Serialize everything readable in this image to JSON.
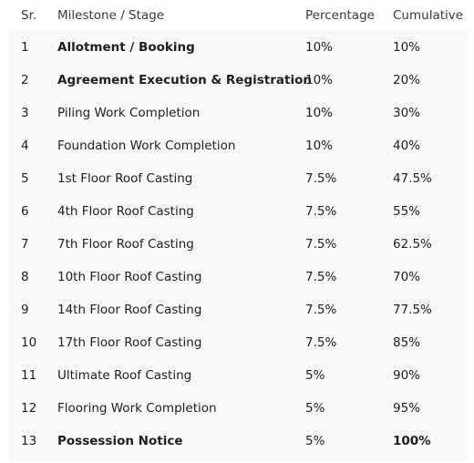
{
  "table": {
    "headers": {
      "sr": "Sr.",
      "milestone": "Milestone / Stage",
      "percentage": "Percentage",
      "cumulative": "Cumulative"
    },
    "rows": [
      {
        "sr": "1",
        "milestone": "Allotment / Booking",
        "percentage": "10%",
        "cumulative": "10%"
      },
      {
        "sr": "2",
        "milestone": "Agreement Execution & Registration",
        "percentage": "10%",
        "cumulative": "20%"
      },
      {
        "sr": "3",
        "milestone": "Piling Work Completion",
        "percentage": "10%",
        "cumulative": "30%"
      },
      {
        "sr": "4",
        "milestone": "Foundation Work Completion",
        "percentage": "10%",
        "cumulative": "40%"
      },
      {
        "sr": "5",
        "milestone": "1st Floor Roof Casting",
        "percentage": "7.5%",
        "cumulative": "47.5%"
      },
      {
        "sr": "6",
        "milestone": "4th Floor Roof Casting",
        "percentage": "7.5%",
        "cumulative": "55%"
      },
      {
        "sr": "7",
        "milestone": "7th Floor Roof Casting",
        "percentage": "7.5%",
        "cumulative": "62.5%"
      },
      {
        "sr": "8",
        "milestone": "10th Floor Roof Casting",
        "percentage": "7.5%",
        "cumulative": "70%"
      },
      {
        "sr": "9",
        "milestone": "14th Floor Roof Casting",
        "percentage": "7.5%",
        "cumulative": "77.5%"
      },
      {
        "sr": "10",
        "milestone": "17th Floor Roof Casting",
        "percentage": "7.5%",
        "cumulative": "85%"
      },
      {
        "sr": "11",
        "milestone": "Ultimate Roof Casting",
        "percentage": "5%",
        "cumulative": "90%"
      },
      {
        "sr": "12",
        "milestone": "Flooring Work Completion",
        "percentage": "5%",
        "cumulative": "95%"
      },
      {
        "sr": "13",
        "milestone": "Possession Notice",
        "percentage": "5%",
        "cumulative": "100%"
      }
    ]
  }
}
